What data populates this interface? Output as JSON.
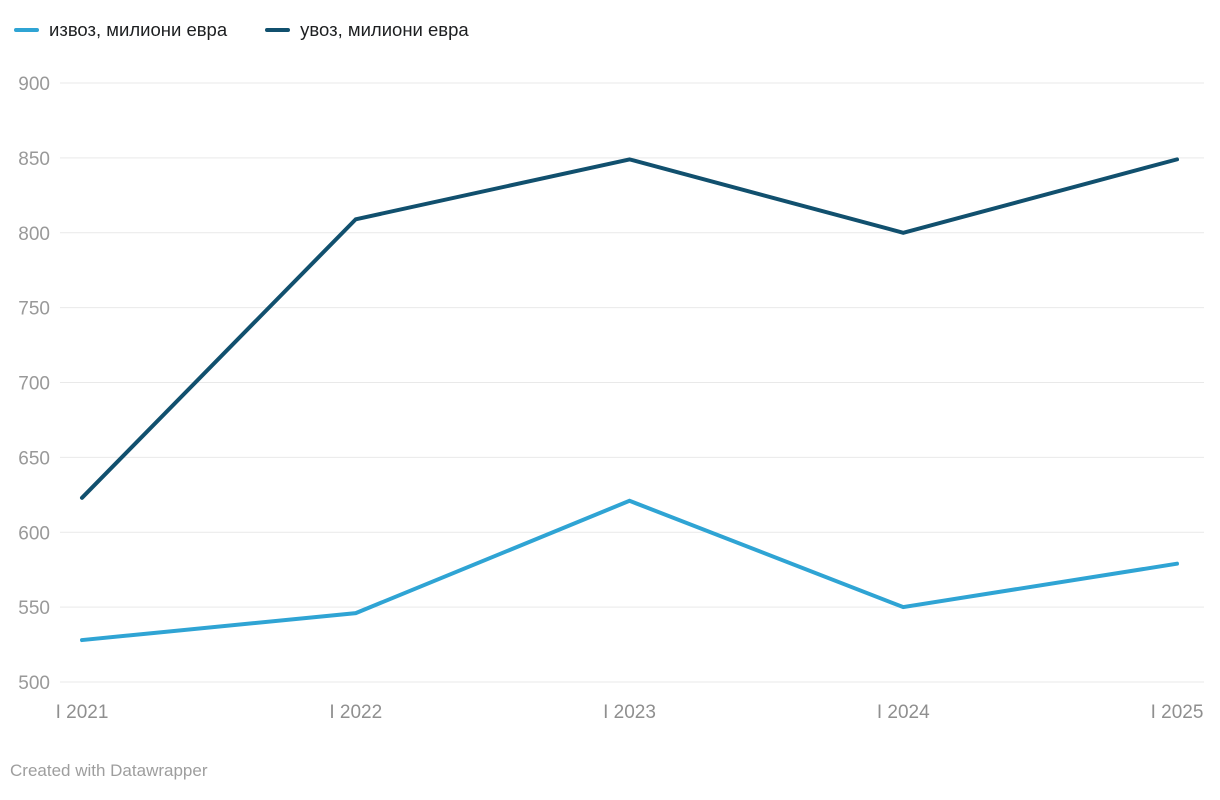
{
  "legend": {
    "items": [
      {
        "label": "извоз, милиони евра",
        "color": "#2fa4d4"
      },
      {
        "label": "увоз, милиони евра",
        "color": "#11506e"
      }
    ]
  },
  "footer": {
    "attribution": "Created with Datawrapper"
  },
  "chart_data": {
    "type": "line",
    "categories": [
      "I 2021",
      "I 2022",
      "I 2023",
      "I 2024",
      "I 2025"
    ],
    "series": [
      {
        "name": "извоз, милиони евра",
        "color": "#2fa4d4",
        "values": [
          528,
          546,
          621,
          550,
          579
        ]
      },
      {
        "name": "увоз, милиони евра",
        "color": "#11506e",
        "values": [
          623,
          809,
          849,
          800,
          849
        ]
      }
    ],
    "ylabel": "",
    "xlabel": "",
    "ylim": [
      500,
      900
    ],
    "ytick_step": 50,
    "grid": true,
    "legend_position": "top"
  }
}
